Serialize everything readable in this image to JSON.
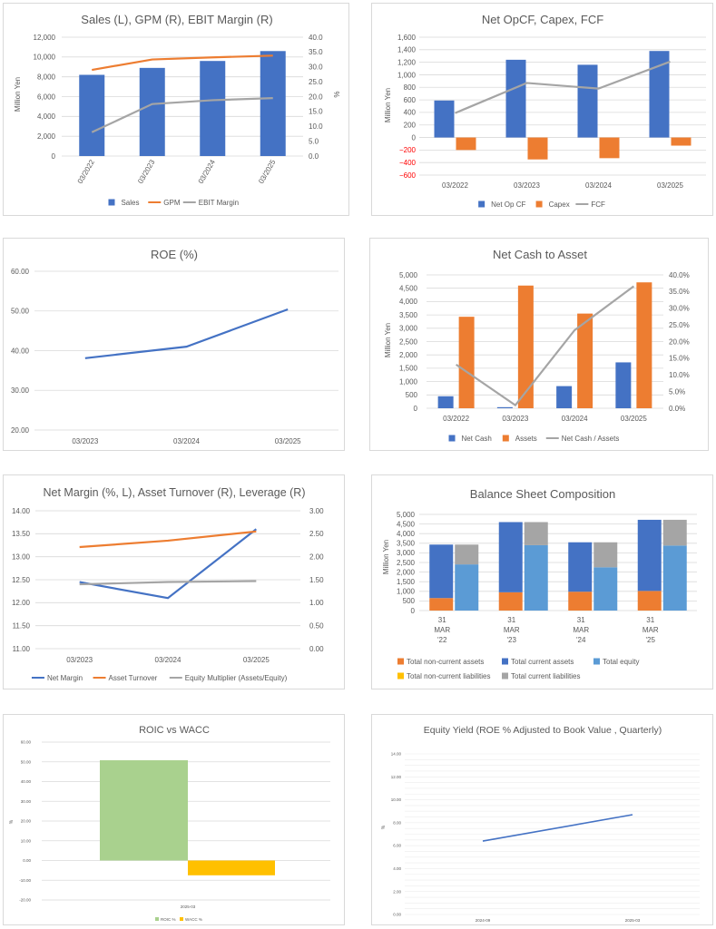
{
  "colors": {
    "blue": "#4472c4",
    "orange": "#ed7d31",
    "gray": "#a5a5a5",
    "lightblue": "#5b9bd5",
    "yellow": "#ffc000",
    "green": "#a9d18e",
    "red": "#ff0000",
    "grid": "#d9d9d9",
    "axis": "#595959"
  },
  "chart_data": [
    {
      "id": "sales",
      "type": "bar",
      "title": "Sales (L), GPM (R), EBIT Margin (R)",
      "categories": [
        "03/2022",
        "03/2023",
        "03/2024",
        "03/2025"
      ],
      "ylabel": "Million Yen",
      "y2label": "%",
      "ylim": [
        0,
        12000
      ],
      "yticks": [
        "0",
        "2,000",
        "4,000",
        "6,000",
        "8,000",
        "10,000",
        "12,000"
      ],
      "y2lim": [
        0,
        40
      ],
      "y2ticks": [
        "0.0",
        "5.0",
        "10.0",
        "15.0",
        "20.0",
        "25.0",
        "30.0",
        "35.0",
        "40.0"
      ],
      "series": [
        {
          "name": "Sales",
          "type": "bar",
          "axis": "left",
          "values": [
            8200,
            8900,
            9600,
            10600
          ]
        },
        {
          "name": "GPM",
          "type": "line",
          "axis": "right",
          "values": [
            29,
            32.5,
            33.2,
            33.8
          ]
        },
        {
          "name": "EBIT Margin",
          "type": "line",
          "axis": "right",
          "values": [
            8,
            17.5,
            18.8,
            19.5
          ]
        }
      ]
    },
    {
      "id": "cf",
      "type": "bar",
      "title": "Net OpCF, Capex, FCF",
      "categories": [
        "03/2022",
        "03/2023",
        "03/2024",
        "03/2025"
      ],
      "ylabel": "Million Yen",
      "ylim": [
        -600,
        1600
      ],
      "yticks": [
        "1,600",
        "1,400",
        "1,200",
        "1,000",
        "800",
        "600",
        "400",
        "200",
        "0",
        "−200",
        "−400",
        "−600"
      ],
      "series": [
        {
          "name": "Net Op CF",
          "type": "bar",
          "values": [
            590,
            1240,
            1160,
            1380
          ]
        },
        {
          "name": "Capex",
          "type": "bar",
          "values": [
            -200,
            -350,
            -330,
            -130
          ]
        },
        {
          "name": "FCF",
          "type": "line",
          "values": [
            390,
            870,
            780,
            1210
          ]
        }
      ]
    },
    {
      "id": "roe",
      "type": "line",
      "title": "ROE (%)",
      "categories": [
        "03/2023",
        "03/2024",
        "03/2025"
      ],
      "ylim": [
        20,
        60
      ],
      "yticks": [
        "20.00",
        "30.00",
        "40.00",
        "50.00",
        "60.00"
      ],
      "series": [
        {
          "name": "ROE",
          "values": [
            38.1,
            41.0,
            50.4
          ]
        }
      ]
    },
    {
      "id": "netcash",
      "type": "bar",
      "title": "Net Cash to Asset",
      "categories": [
        "03/2022",
        "03/2023",
        "03/2024",
        "03/2025"
      ],
      "ylabel": "Million Yen",
      "ylim": [
        0,
        5000
      ],
      "yticks": [
        "0",
        "500",
        "1,000",
        "1,500",
        "2,000",
        "2,500",
        "3,000",
        "3,500",
        "4,000",
        "4,500",
        "5,000"
      ],
      "y2lim": [
        0,
        40
      ],
      "y2ticks": [
        "0.0%",
        "5.0%",
        "10.0%",
        "15.0%",
        "20.0%",
        "25.0%",
        "30.0%",
        "35.0%",
        "40.0%"
      ],
      "series": [
        {
          "name": "Net Cash",
          "type": "bar",
          "axis": "left",
          "values": [
            450,
            40,
            830,
            1720
          ]
        },
        {
          "name": "Assets",
          "type": "bar",
          "axis": "left",
          "values": [
            3430,
            4600,
            3550,
            4720
          ]
        },
        {
          "name": "Net Cash / Assets",
          "type": "line",
          "axis": "right",
          "values": [
            13.1,
            0.9,
            23.4,
            36.6
          ]
        }
      ]
    },
    {
      "id": "dupont",
      "type": "line",
      "title": "Net Margin (%, L), Asset Turnover (R), Leverage (R)",
      "categories": [
        "03/2023",
        "03/2024",
        "03/2025"
      ],
      "ylim": [
        11,
        14
      ],
      "yticks": [
        "11.00",
        "11.50",
        "12.00",
        "12.50",
        "13.00",
        "13.50",
        "14.00"
      ],
      "y2lim": [
        0,
        3
      ],
      "y2ticks": [
        "0.00",
        "0.50",
        "1.00",
        "1.50",
        "2.00",
        "2.50",
        "3.00"
      ],
      "series": [
        {
          "name": "Net Margin",
          "axis": "left",
          "values": [
            12.45,
            12.1,
            13.6
          ]
        },
        {
          "name": "Asset Turnover",
          "axis": "right",
          "values": [
            2.21,
            2.35,
            2.55
          ]
        },
        {
          "name": "Equity Multiplier (Assets/Equity)",
          "axis": "right",
          "values": [
            1.4,
            1.45,
            1.47
          ]
        }
      ]
    },
    {
      "id": "bs",
      "type": "bar",
      "title": "Balance Sheet Composition",
      "ylabel": "Million Yen",
      "ylim": [
        0,
        5000
      ],
      "yticks": [
        "0",
        "500",
        "1,000",
        "1,500",
        "2,000",
        "2,500",
        "3,000",
        "3,500",
        "4,000",
        "4,500",
        "5,000"
      ],
      "categories": [
        [
          "31",
          "MAR",
          "'22"
        ],
        [
          "31",
          "MAR",
          "'23"
        ],
        [
          "31",
          "MAR",
          "'24"
        ],
        [
          "31",
          "MAR",
          "'25"
        ]
      ],
      "series": [
        {
          "name": "Total non-current assets",
          "stack": "assets",
          "values": [
            650,
            950,
            980,
            1020
          ]
        },
        {
          "name": "Total current assets",
          "stack": "assets",
          "values": [
            2780,
            3650,
            2570,
            3700
          ]
        },
        {
          "name": "Total equity",
          "stack": "liabeq",
          "values": [
            2400,
            3400,
            2250,
            3380
          ]
        },
        {
          "name": "Total non-current liabilities",
          "stack": "liabeq",
          "values": [
            0,
            0,
            0,
            0
          ]
        },
        {
          "name": "Total current liabilities",
          "stack": "liabeq",
          "values": [
            1030,
            1200,
            1300,
            1340
          ]
        }
      ]
    },
    {
      "id": "roic",
      "type": "bar",
      "title": "ROIC vs WACC",
      "ylabel": "%",
      "categories": [
        "2025-03"
      ],
      "ylim": [
        -20,
        60
      ],
      "yticks": [
        "-20.00",
        "-10.00",
        "0.00",
        "10.00",
        "20.00",
        "30.00",
        "40.00",
        "50.00",
        "60.00"
      ],
      "series": [
        {
          "name": "ROIC %",
          "values": [
            50.8
          ]
        },
        {
          "name": "WACC %",
          "values": [
            -7.5
          ]
        }
      ]
    },
    {
      "id": "ey",
      "type": "line",
      "title": "Equity Yield (ROE % Adjusted to Book Value , Quarterly)",
      "ylabel": "%",
      "categories": [
        "2024-09",
        "2025-03"
      ],
      "ylim": [
        0,
        14
      ],
      "yticks": [
        "0.00",
        "2.00",
        "4.00",
        "6.00",
        "8.00",
        "10.00",
        "12.00",
        "14.00"
      ],
      "series": [
        {
          "name": "Equity Yield",
          "values": [
            6.4,
            8.7
          ]
        }
      ]
    }
  ]
}
